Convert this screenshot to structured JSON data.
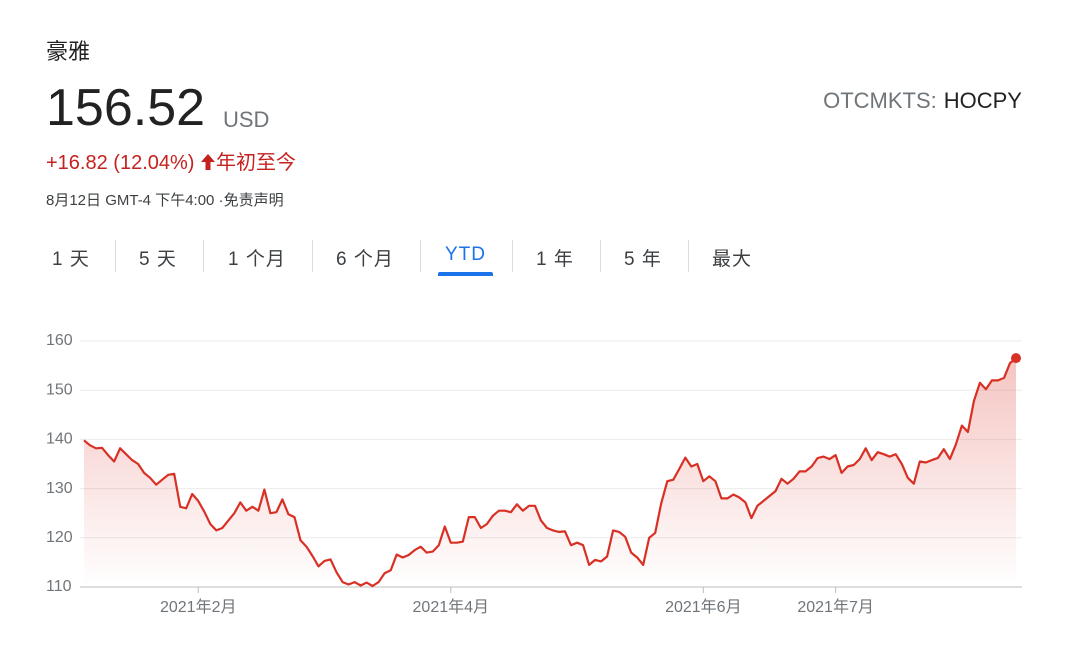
{
  "header": {
    "name": "豪雅",
    "price": "156.52",
    "currency": "USD",
    "exchange": "OTCMKTS:",
    "ticker": "HOCPY",
    "change": "+16.82 (12.04%)",
    "period": "年初至今",
    "timestamp": "8月12日 GMT-4 下午4:00 ·",
    "disclaimer": "免责声明"
  },
  "tabs": [
    "1 天",
    "5 天",
    "1 个月",
    "6 个月",
    "YTD",
    "1 年",
    "5 年",
    "最大"
  ],
  "chart_data": {
    "type": "line",
    "color": "#d93025",
    "values": [
      139.8,
      138.8,
      138.2,
      138.3,
      136.8,
      135.5,
      138.2,
      137,
      135.8,
      135,
      133.2,
      132.2,
      130.8,
      131.8,
      132.8,
      133,
      126.3,
      126,
      128.9,
      127.5,
      125.3,
      122.8,
      121.5,
      122,
      123.5,
      125,
      127.2,
      125.5,
      126.3,
      125.5,
      129.8,
      125,
      125.2,
      127.8,
      124.8,
      124.2,
      119.5,
      118.2,
      116.3,
      114.2,
      115.3,
      115.6,
      113,
      111,
      110.5,
      111,
      110.3,
      110.9,
      110.2,
      111,
      112.8,
      113.4,
      116.6,
      116,
      116.5,
      117.5,
      118.2,
      117,
      117.2,
      118.5,
      122.3,
      119,
      119,
      119.2,
      124.2,
      124.2,
      122,
      122.8,
      124.5,
      125.5,
      125.5,
      125.2,
      126.8,
      125.5,
      126.5,
      126.5,
      123.5,
      122,
      121.5,
      121.2,
      121.3,
      118.5,
      119,
      118.5,
      114.5,
      115.5,
      115.2,
      116.2,
      121.5,
      121.2,
      120.2,
      117,
      116,
      114.5,
      120,
      121,
      127,
      131.5,
      131.8,
      134,
      136.3,
      134.5,
      135,
      131.5,
      132.5,
      131.5,
      128,
      128,
      128.8,
      128.2,
      127.2,
      124,
      126.5,
      127.5,
      128.5,
      129.5,
      132,
      131,
      132,
      133.5,
      133.5,
      134.5,
      136.2,
      136.5,
      136,
      136.8,
      133.2,
      134.5,
      134.8,
      136,
      138.2,
      135.8,
      137.4,
      137,
      136.5,
      137,
      135,
      132.2,
      131,
      135.5,
      135.3,
      135.8,
      136.2,
      138,
      136,
      139,
      142.8,
      141.5,
      147.8,
      151.5,
      150.2,
      152,
      152,
      152.5,
      155.5,
      156.52
    ],
    "xlim": [
      0,
      155
    ],
    "xticks": [
      {
        "value": 19,
        "label": "2021年2月"
      },
      {
        "value": 61,
        "label": "2021年4月"
      },
      {
        "value": 103,
        "label": "2021年6月"
      },
      {
        "value": 125,
        "label": "2021年7月"
      }
    ],
    "ylim": [
      110,
      160
    ],
    "yticks": [
      110,
      120,
      130,
      140,
      150,
      160
    ],
    "grid": true
  }
}
